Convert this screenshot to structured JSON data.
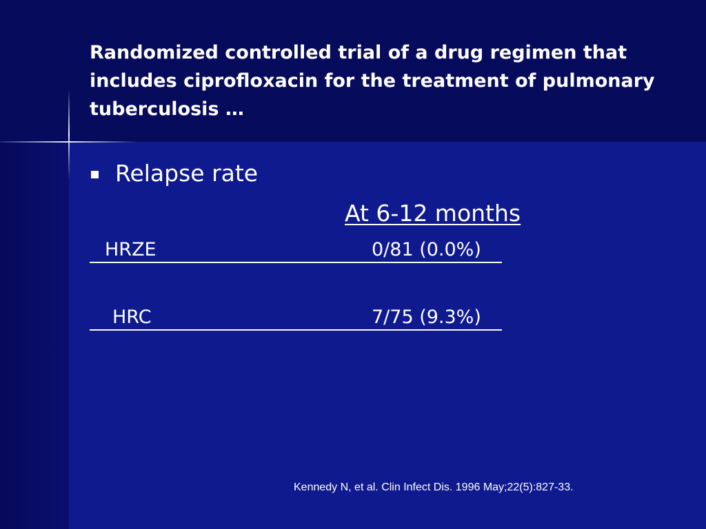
{
  "slide": {
    "title": "Randomized controlled trial of a drug regimen that includes ciprofloxacin for the treatment of pulmonary tuberculosis …",
    "bullet": "Relapse rate",
    "column_header": "At 6-12 months",
    "rows": [
      {
        "regimen": "HRZE",
        "value": "0/81 (0.0%)"
      },
      {
        "regimen": "HRC",
        "value": "7/75 (9.3%)"
      }
    ],
    "citation": "Kennedy N, et al.  Clin Infect Dis. 1996 May;22(5):827-33."
  },
  "colors": {
    "background": "#0f1a8f",
    "title_band": "#070b5c",
    "text": "#ffffff"
  }
}
